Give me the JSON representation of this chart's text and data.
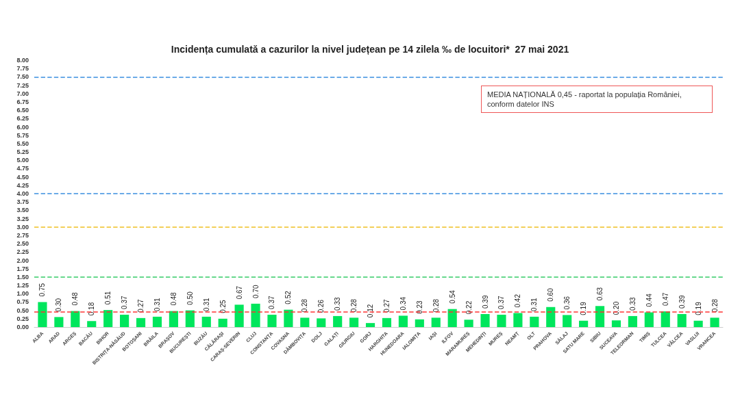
{
  "chart_data": {
    "type": "bar",
    "title": "Incidența cumulată a cazurilor la nivel județean pe 14 zilela ‰ de locuitori*  27 mai 2021",
    "categories": [
      "ALBA",
      "ARAD",
      "ARGEȘ",
      "BACĂU",
      "BIHOR",
      "BISTRIȚA-NĂSĂUD",
      "BOTOȘANI",
      "BRĂILA",
      "BRAȘOV",
      "BUCUREȘTI",
      "BUZĂU",
      "CĂLĂRAȘI",
      "CARAȘ-SEVERIN",
      "CLUJ",
      "CONSTANȚA",
      "COVASNA",
      "DÂMBOVIȚA",
      "DOLJ",
      "GALAȚI",
      "GIURGIU",
      "GORJ",
      "HARGHITA",
      "HUNEDOARA",
      "IALOMIȚA",
      "IAȘI",
      "ILFOV",
      "MARAMUREȘ",
      "MEHEDINȚI",
      "MUREȘ",
      "NEAMȚ",
      "OLT",
      "PRAHOVA",
      "SĂLAJ",
      "SATU MARE",
      "SIBIU",
      "SUCEAVA",
      "TELEORMAN",
      "TIMIȘ",
      "TULCEA",
      "VÂLCEA",
      "VASLUI",
      "VRANCEA"
    ],
    "values": [
      0.75,
      0.3,
      0.48,
      0.18,
      0.51,
      0.37,
      0.27,
      0.31,
      0.48,
      0.5,
      0.31,
      0.25,
      0.67,
      0.7,
      0.37,
      0.52,
      0.28,
      0.26,
      0.33,
      0.28,
      0.12,
      0.27,
      0.34,
      0.23,
      0.28,
      0.54,
      0.22,
      0.39,
      0.37,
      0.42,
      0.31,
      0.6,
      0.36,
      0.19,
      0.63,
      0.2,
      0.33,
      0.44,
      0.47,
      0.39,
      0.19,
      0.28
    ],
    "color": "#00e65c",
    "grid": false,
    "value_labels": [
      "0.75",
      "0.30",
      "0.48",
      "0.18",
      "0.51",
      "0.37",
      "0.27",
      "0.31",
      "0.48",
      "0.50",
      "0.31",
      "0.25",
      "0.67",
      "0.70",
      "0.37",
      "0.52",
      "0.28",
      "0.26",
      "0.33",
      "0.28",
      "0.12",
      "0.27",
      "0.34",
      "0.23",
      "0.28",
      "0.54",
      "0.22",
      "0.39",
      "0.37",
      "0.42",
      "0.31",
      "0.60",
      "0.36",
      "0.19",
      "0.63",
      "0.20",
      "0.33",
      "0.44",
      "0.47",
      "0.39",
      "0.19",
      "0.28"
    ],
    "ylim": [
      0,
      8
    ],
    "yticks": [
      {
        "value": 0,
        "label": "0.00"
      },
      {
        "value": 0.25,
        "label": "0.25"
      },
      {
        "value": 0.5,
        "label": "0.50"
      },
      {
        "value": 0.75,
        "label": "0.75"
      },
      {
        "value": 1,
        "label": "1.00"
      },
      {
        "value": 1.25,
        "label": "1.25"
      },
      {
        "value": 1.5,
        "label": "1.50"
      },
      {
        "value": 1.75,
        "label": "1.75"
      },
      {
        "value": 2,
        "label": "2.00"
      },
      {
        "value": 2.25,
        "label": "2.25"
      },
      {
        "value": 2.5,
        "label": "2.50"
      },
      {
        "value": 2.75,
        "label": "2.75"
      },
      {
        "value": 3,
        "label": "3.00"
      },
      {
        "value": 3.25,
        "label": "3.25"
      },
      {
        "value": 3.5,
        "label": "3.50"
      },
      {
        "value": 3.75,
        "label": "3.75"
      },
      {
        "value": 4,
        "label": "4.00"
      },
      {
        "value": 4.25,
        "label": "4.25"
      },
      {
        "value": 4.5,
        "label": "4.50"
      },
      {
        "value": 4.75,
        "label": "4.75"
      },
      {
        "value": 5,
        "label": "5.00"
      },
      {
        "value": 5.25,
        "label": "5.25"
      },
      {
        "value": 5.5,
        "label": "5.50"
      },
      {
        "value": 5.75,
        "label": "5.75"
      },
      {
        "value": 6,
        "label": "6.00"
      },
      {
        "value": 6.25,
        "label": "6.25"
      },
      {
        "value": 6.5,
        "label": "6.50"
      },
      {
        "value": 6.75,
        "label": "6.75"
      },
      {
        "value": 7,
        "label": "7.00"
      },
      {
        "value": 7.25,
        "label": "7.25"
      },
      {
        "value": 7.5,
        "label": "7.50"
      },
      {
        "value": 7.75,
        "label": "7.75"
      },
      {
        "value": 8,
        "label": "8.00"
      }
    ],
    "ref_lines": [
      {
        "axis": "y",
        "value": 0.45,
        "color": "#ff3333",
        "line_style": "dashed"
      },
      {
        "axis": "y",
        "value": 1.5,
        "color": "#33cc66",
        "line_style": "dashed"
      },
      {
        "axis": "y",
        "value": 3,
        "color": "#f0c020",
        "line_style": "dashed"
      },
      {
        "axis": "y",
        "value": 4,
        "color": "#3a8fe0",
        "line_style": "dashed"
      },
      {
        "axis": "y",
        "value": 7.5,
        "color": "#3a8fe0",
        "line_style": "dashed"
      }
    ],
    "annotations": [
      "MEDIA NAȚIONALĂ 0,45 - raportat la populația României, conform datelor INS"
    ]
  }
}
